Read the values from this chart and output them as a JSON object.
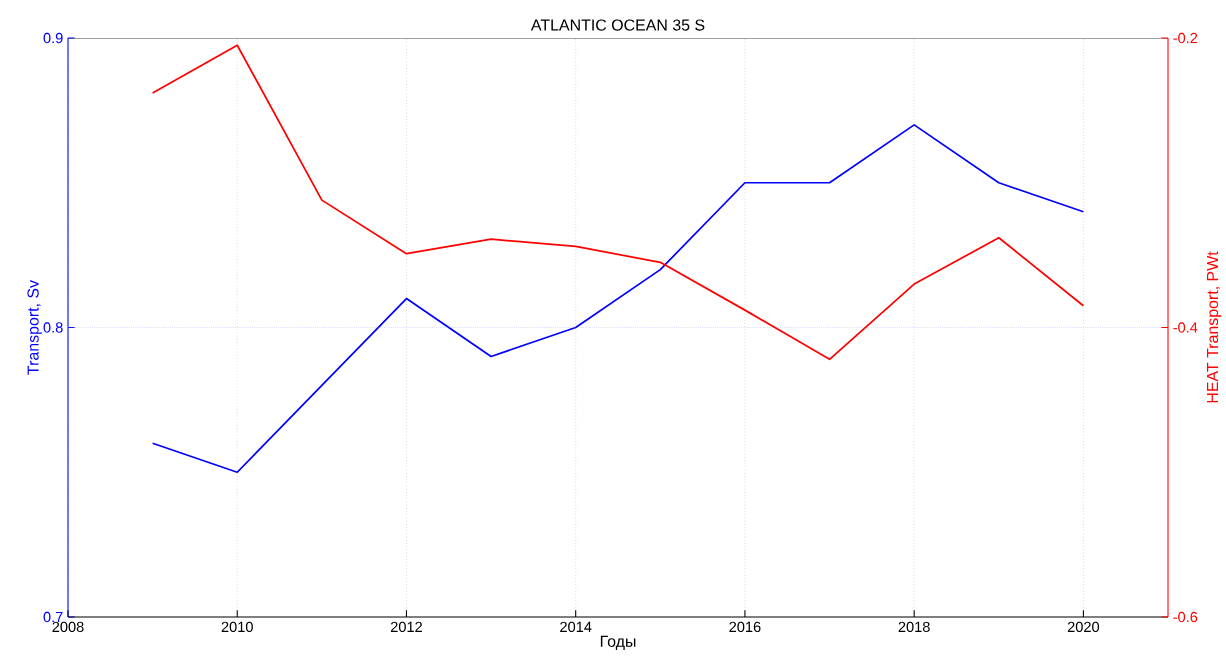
{
  "chart_data": {
    "type": "line",
    "title": "ATLANTIC OCEAN 35 S",
    "xlabel": "Годы",
    "ylabel": "Transport, Sv",
    "y2label": "HEAT Transport, PWt",
    "x": [
      2009,
      2010,
      2011,
      2012,
      2013,
      2014,
      2015,
      2016,
      2017,
      2018,
      2019,
      2020
    ],
    "series": [
      {
        "color": "#0000ff",
        "values": [
          0.76,
          0.75,
          0.78,
          0.81,
          0.79,
          0.8,
          0.82,
          0.85,
          0.85,
          0.87,
          0.85,
          0.84
        ]
      },
      {
        "color": "#ff0000",
        "axis": "y2",
        "values": [
          -0.238,
          -0.205,
          -0.312,
          -0.349,
          -0.339,
          -0.344,
          -0.355,
          -0.388,
          -0.422,
          -0.37,
          -0.338,
          -0.385
        ]
      }
    ],
    "xlim": [
      2008,
      2021
    ],
    "xticks": [
      2008,
      2010,
      2012,
      2014,
      2016,
      2018,
      2020
    ],
    "ylim": [
      0.7,
      0.9
    ],
    "yticks": [
      0.7,
      0.8,
      0.9
    ],
    "y2lim": [
      -0.6,
      -0.2
    ],
    "y2ticks": [
      -0.6,
      -0.4,
      -0.2
    ],
    "ref_lines": [
      {
        "axis": "y",
        "value": 0.8,
        "color": "#8c8cff",
        "line_style": "dotted"
      }
    ],
    "grid": "x",
    "marker": "none",
    "line_style": "solid"
  }
}
